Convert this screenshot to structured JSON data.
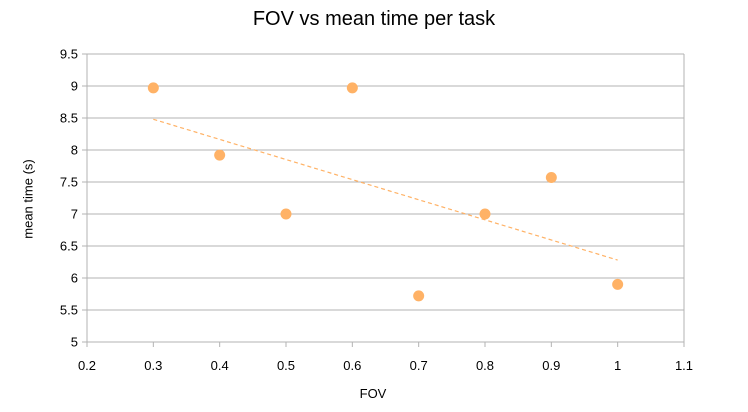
{
  "chart_data": {
    "type": "scatter",
    "title": "FOV vs mean time per task",
    "xlabel": "FOV",
    "ylabel": "mean time (s)",
    "xlim": [
      0.2,
      1.1
    ],
    "ylim": [
      5,
      9.5
    ],
    "x_ticks": [
      "0.2",
      "0.3",
      "0.4",
      "0.5",
      "0.6",
      "0.7",
      "0.8",
      "0.9",
      "1",
      "1.1"
    ],
    "y_ticks": [
      "5",
      "5.5",
      "6",
      "6.5",
      "7",
      "7.5",
      "8",
      "8.5",
      "9",
      "9.5"
    ],
    "grid": "horizontal",
    "legend": "none",
    "series": [
      {
        "points": [
          {
            "x": 0.3,
            "y": 8.97
          },
          {
            "x": 0.4,
            "y": 7.92
          },
          {
            "x": 0.5,
            "y": 7.0
          },
          {
            "x": 0.6,
            "y": 8.97
          },
          {
            "x": 0.7,
            "y": 5.72
          },
          {
            "x": 0.8,
            "y": 7.0
          },
          {
            "x": 0.9,
            "y": 7.57
          },
          {
            "x": 1.0,
            "y": 5.9
          }
        ],
        "color": "#ffb266"
      }
    ],
    "trendline": {
      "type": "linear",
      "from": {
        "x": 0.3,
        "y": 8.48
      },
      "to": {
        "x": 1.0,
        "y": 6.28
      },
      "color": "#ffb266",
      "style": "dashed"
    }
  }
}
